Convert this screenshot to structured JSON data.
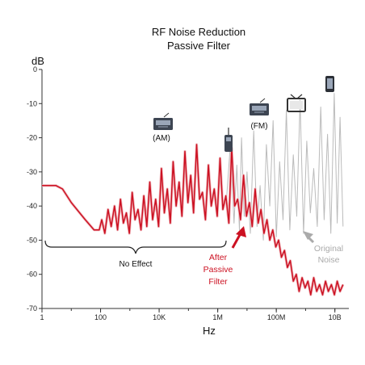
{
  "chart_data": {
    "type": "line",
    "title_line1": "RF Noise Reduction",
    "title_line2": "Passive Filter",
    "ylabel": "dB",
    "xlabel": "Hz",
    "x_scale": "log",
    "xlim": [
      1,
      30000000000
    ],
    "ylim": [
      -70,
      0
    ],
    "x_ticks": [
      {
        "value": 1,
        "label": "1"
      },
      {
        "value": 100,
        "label": "100"
      },
      {
        "value": 10000,
        "label": "10K"
      },
      {
        "value": 1000000,
        "label": "1M"
      },
      {
        "value": 100000000,
        "label": "100M"
      },
      {
        "value": 10000000000,
        "label": "10B"
      }
    ],
    "y_ticks": [
      {
        "value": 0,
        "label": "0"
      },
      {
        "value": -10,
        "label": "-10"
      },
      {
        "value": -20,
        "label": "-20"
      },
      {
        "value": -30,
        "label": "-30"
      },
      {
        "value": -40,
        "label": "-40"
      },
      {
        "value": -50,
        "label": "-50"
      },
      {
        "value": -60,
        "label": "-60"
      },
      {
        "value": -70,
        "label": "-70"
      }
    ],
    "grid": false,
    "series": [
      {
        "name": "Original Noise",
        "color": "#bbbbbb",
        "x": [
          2000000,
          2700000,
          3600000,
          4500000,
          5500000,
          6500000,
          8000000,
          10000000,
          13000000,
          17000000,
          22000000,
          28000000,
          36000000,
          46000000,
          60000000,
          78000000,
          100000000,
          130000000,
          170000000,
          220000000,
          290000000,
          380000000,
          500000000,
          650000000,
          850000000,
          1100000000,
          1450000000,
          1900000000,
          2500000000,
          3300000000,
          4300000000,
          5600000000,
          7300000000,
          9500000000,
          12000000000,
          15000000000,
          19000000000
        ],
        "y": [
          -38,
          -22,
          -45,
          -28,
          -47,
          -20,
          -43,
          -30,
          -48,
          -18,
          -46,
          -34,
          -50,
          -22,
          -40,
          -15,
          -49,
          -27,
          -44,
          -12,
          -47,
          -25,
          -43,
          -9,
          -48,
          -21,
          -42,
          -29,
          -46,
          -11,
          -44,
          -19,
          -48,
          -7,
          -45,
          -14,
          -46
        ]
      },
      {
        "name": "After Passive Filter",
        "color": "#cc1122",
        "x": [
          1,
          2,
          3,
          5,
          10,
          30,
          60,
          90,
          110,
          140,
          180,
          230,
          300,
          380,
          480,
          600,
          760,
          960,
          1200,
          1500,
          1900,
          2400,
          3000,
          3800,
          4800,
          6000,
          7600,
          9600,
          12000,
          15000,
          19000,
          24000,
          30000,
          38000,
          48000,
          60000,
          76000,
          96000,
          120000,
          150000,
          190000,
          240000,
          300000,
          380000,
          480000,
          600000,
          760000,
          960000,
          1200000,
          1500000,
          1900000,
          2400000,
          3000000,
          3800000,
          4800000,
          6000000,
          7600000,
          9600000,
          12000000,
          15000000,
          19000000,
          24000000,
          30000000,
          38000000,
          48000000,
          60000000,
          76000000,
          96000000,
          120000000,
          150000000,
          190000000,
          240000000,
          300000000,
          380000000,
          480000000,
          600000000,
          760000000,
          960000000,
          1200000000,
          1500000000,
          1900000000,
          2400000000,
          3000000000,
          3800000000,
          4800000000,
          6000000000,
          7600000000,
          9600000000,
          12000000000,
          15000000000,
          19000000000
        ],
        "y": [
          -34,
          -34,
          -34,
          -35,
          -39,
          -44,
          -47,
          -47,
          -44,
          -48,
          -41,
          -46,
          -40,
          -47,
          -38,
          -45,
          -42,
          -48,
          -36,
          -44,
          -41,
          -47,
          -37,
          -46,
          -33,
          -44,
          -38,
          -46,
          -29,
          -42,
          -35,
          -45,
          -27,
          -40,
          -33,
          -43,
          -24,
          -39,
          -31,
          -42,
          -22,
          -38,
          -36,
          -44,
          -28,
          -40,
          -35,
          -43,
          -26,
          -41,
          -37,
          -45,
          -23,
          -40,
          -38,
          -44,
          -31,
          -43,
          -39,
          -46,
          -35,
          -45,
          -41,
          -48,
          -44,
          -50,
          -47,
          -52,
          -50,
          -55,
          -53,
          -58,
          -56,
          -62,
          -60,
          -65,
          -61,
          -64,
          -62,
          -66,
          -61,
          -65,
          -63,
          -66,
          -62,
          -65,
          -63,
          -66,
          -62,
          -65,
          -63
        ]
      }
    ],
    "annotations": {
      "band_am": "(AM)",
      "band_fm": "(FM)",
      "no_effect": "No Effect",
      "after_filter": [
        "After",
        "Passive",
        "Filter"
      ],
      "original_noise": [
        "Original",
        "Noise"
      ]
    }
  },
  "colors": {
    "filtered": "#cc1122",
    "original": "#bbbbbb",
    "original_label": "#aaaaaa",
    "axis": "#333333"
  },
  "icons": {
    "am_radio": "radio-icon",
    "walkie_talkie": "walkie-talkie-icon",
    "fm_radio": "radio-icon",
    "tv": "tv-icon",
    "phone": "phone-icon"
  }
}
